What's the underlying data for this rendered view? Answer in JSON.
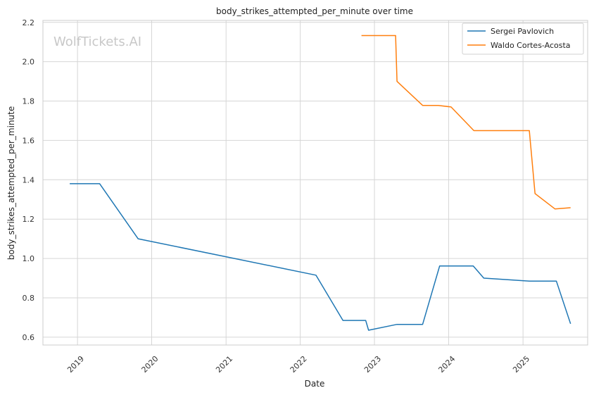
{
  "chart_data": {
    "type": "line",
    "title": "body_strikes_attempted_per_minute over time",
    "xlabel": "Date",
    "ylabel": "body_strikes_attempted_per_minute",
    "watermark": "WolfTickets.AI",
    "x_ticks": [
      "2019",
      "2020",
      "2021",
      "2022",
      "2023",
      "2024",
      "2025"
    ],
    "y_ticks": [
      "0.6",
      "0.8",
      "1.0",
      "1.2",
      "1.4",
      "1.6",
      "1.8",
      "2.0",
      "2.2"
    ],
    "xlim": [
      "2018-07-15",
      "2025-11-15"
    ],
    "ylim": [
      0.56,
      2.21
    ],
    "grid": true,
    "legend_position": "top-right",
    "series": [
      {
        "name": "Sergei Pavlovich",
        "color": "#1f77b4",
        "points": [
          [
            "2018-11-24",
            1.38
          ],
          [
            "2019-04-20",
            1.38
          ],
          [
            "2019-10-26",
            1.1
          ],
          [
            "2022-03-19",
            0.915
          ],
          [
            "2022-07-30",
            0.685
          ],
          [
            "2022-11-19",
            0.685
          ],
          [
            "2022-12-03",
            0.635
          ],
          [
            "2023-04-22",
            0.665
          ],
          [
            "2023-08-26",
            0.665
          ],
          [
            "2023-11-18",
            0.962
          ],
          [
            "2024-05-01",
            0.962
          ],
          [
            "2024-06-22",
            0.9
          ],
          [
            "2025-02-01",
            0.885
          ],
          [
            "2025-06-14",
            0.885
          ],
          [
            "2025-08-23",
            0.668
          ]
        ]
      },
      {
        "name": "Waldo Cortes-Acosta",
        "color": "#ff7f0e",
        "points": [
          [
            "2022-10-29",
            2.133
          ],
          [
            "2023-04-15",
            2.133
          ],
          [
            "2023-04-22",
            1.9
          ],
          [
            "2023-08-26",
            1.778
          ],
          [
            "2023-11-11",
            1.778
          ],
          [
            "2024-01-13",
            1.77
          ],
          [
            "2024-05-04",
            1.65
          ],
          [
            "2025-02-01",
            1.65
          ],
          [
            "2025-03-01",
            1.33
          ],
          [
            "2025-06-07",
            1.252
          ],
          [
            "2025-08-23",
            1.258
          ]
        ]
      }
    ]
  }
}
